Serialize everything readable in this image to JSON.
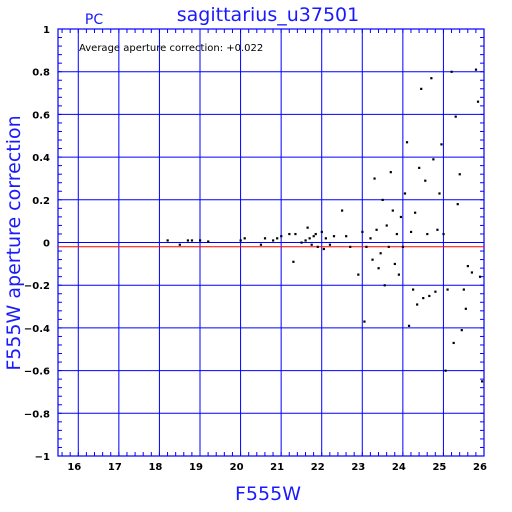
{
  "chart_data": {
    "type": "scatter",
    "title": "sagittarius_u37501",
    "corner_label": "PC",
    "annotation": "Average aperture correction: +0.022",
    "xlabel": "F555W",
    "ylabel": "F555W aperture correction",
    "xlim": [
      15.5,
      26
    ],
    "ylim": [
      -1,
      1
    ],
    "x_ticks": [
      16,
      17,
      18,
      19,
      20,
      21,
      22,
      23,
      24,
      25,
      26
    ],
    "x_tick_labels": [
      "16",
      "17",
      "18",
      "19",
      "20",
      "21",
      "22",
      "23",
      "24",
      "25",
      "26"
    ],
    "y_ticks": [
      -1,
      -0.8,
      -0.6,
      -0.4,
      -0.2,
      0,
      0.2,
      0.4,
      0.6,
      0.8,
      1
    ],
    "y_tick_labels": [
      "−1",
      "−0.8",
      "−0.6",
      "−0.4",
      "−0.2",
      "0",
      "0.2",
      "0.4",
      "0.6",
      "0.8",
      "1"
    ],
    "grid": true,
    "reference_lines": [
      {
        "y": 0,
        "color": "#0000ff"
      },
      {
        "y": -0.02,
        "color": "#ff0000"
      }
    ],
    "colors": {
      "frame": "#0000ff",
      "label": "#1a1aff",
      "points": "#000000"
    },
    "points": [
      [
        18.2,
        0.01
      ],
      [
        18.5,
        -0.01
      ],
      [
        18.7,
        0.01
      ],
      [
        18.8,
        0.01
      ],
      [
        19.0,
        0.01
      ],
      [
        19.2,
        0.005
      ],
      [
        20.0,
        0.01
      ],
      [
        20.1,
        0.02
      ],
      [
        20.5,
        -0.01
      ],
      [
        20.6,
        0.02
      ],
      [
        20.8,
        0.01
      ],
      [
        20.9,
        0.02
      ],
      [
        21.0,
        0.03
      ],
      [
        21.2,
        0.04
      ],
      [
        21.3,
        -0.09
      ],
      [
        21.35,
        0.04
      ],
      [
        21.5,
        0.0
      ],
      [
        21.6,
        0.01
      ],
      [
        21.65,
        0.07
      ],
      [
        21.7,
        0.02
      ],
      [
        21.75,
        -0.01
      ],
      [
        21.8,
        0.03
      ],
      [
        21.85,
        0.04
      ],
      [
        21.9,
        -0.02
      ],
      [
        22.0,
        0.05
      ],
      [
        22.05,
        -0.03
      ],
      [
        22.1,
        0.02
      ],
      [
        22.2,
        -0.01
      ],
      [
        22.3,
        0.03
      ],
      [
        22.5,
        0.15
      ],
      [
        22.6,
        0.03
      ],
      [
        22.7,
        -0.02
      ],
      [
        22.9,
        -0.15
      ],
      [
        23.0,
        0.05
      ],
      [
        23.05,
        -0.37
      ],
      [
        23.1,
        -0.02
      ],
      [
        23.2,
        0.02
      ],
      [
        23.25,
        -0.08
      ],
      [
        23.3,
        0.3
      ],
      [
        23.35,
        0.06
      ],
      [
        23.4,
        -0.12
      ],
      [
        23.45,
        -0.05
      ],
      [
        23.5,
        0.2
      ],
      [
        23.55,
        -0.2
      ],
      [
        23.6,
        0.08
      ],
      [
        23.65,
        -0.02
      ],
      [
        23.7,
        0.33
      ],
      [
        23.75,
        0.15
      ],
      [
        23.8,
        -0.1
      ],
      [
        23.85,
        0.04
      ],
      [
        23.9,
        -0.15
      ],
      [
        23.95,
        0.12
      ],
      [
        24.0,
        -0.02
      ],
      [
        24.05,
        0.23
      ],
      [
        24.1,
        0.47
      ],
      [
        24.15,
        -0.39
      ],
      [
        24.2,
        0.05
      ],
      [
        24.25,
        -0.22
      ],
      [
        24.3,
        0.14
      ],
      [
        24.35,
        -0.29
      ],
      [
        24.4,
        0.35
      ],
      [
        24.45,
        0.72
      ],
      [
        24.5,
        -0.26
      ],
      [
        24.55,
        0.29
      ],
      [
        24.6,
        0.04
      ],
      [
        24.65,
        -0.25
      ],
      [
        24.7,
        0.77
      ],
      [
        24.75,
        0.39
      ],
      [
        24.8,
        -0.23
      ],
      [
        24.85,
        0.06
      ],
      [
        24.9,
        0.23
      ],
      [
        24.95,
        0.46
      ],
      [
        25.0,
        0.04
      ],
      [
        25.05,
        -0.6
      ],
      [
        25.1,
        -0.22
      ],
      [
        25.2,
        0.8
      ],
      [
        25.25,
        -0.47
      ],
      [
        25.3,
        0.59
      ],
      [
        25.35,
        0.18
      ],
      [
        25.4,
        0.32
      ],
      [
        25.45,
        -0.41
      ],
      [
        25.5,
        -0.22
      ],
      [
        25.55,
        -0.31
      ],
      [
        25.6,
        -0.11
      ],
      [
        25.7,
        -0.14
      ],
      [
        25.8,
        0.81
      ],
      [
        25.85,
        0.66
      ],
      [
        25.9,
        -0.16
      ],
      [
        25.95,
        -0.65
      ]
    ]
  }
}
